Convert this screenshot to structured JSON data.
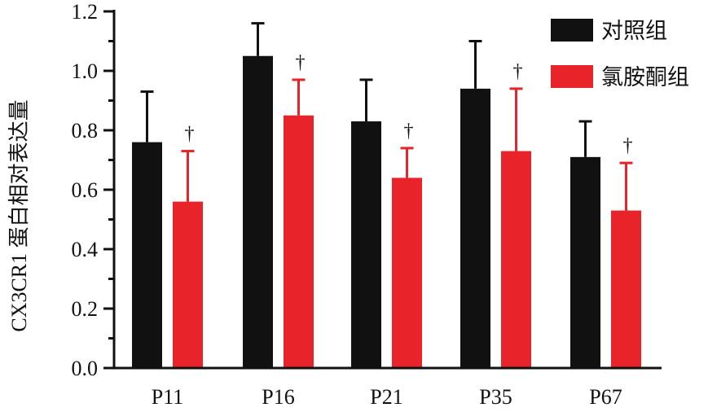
{
  "chart_data": {
    "type": "bar",
    "ylabel": "CX3CR1 蛋白相对表达量",
    "ylim": [
      0,
      1.2
    ],
    "yticks": [
      "0.0",
      "0.2",
      "0.4",
      "0.6",
      "0.8",
      "1.0",
      "1.2"
    ],
    "categories": [
      "P11",
      "P16",
      "P21",
      "P35",
      "P67"
    ],
    "series": [
      {
        "name": "对照组",
        "color": "#111111",
        "values": [
          0.76,
          1.05,
          0.83,
          0.94,
          0.71
        ],
        "errors": [
          0.17,
          0.11,
          0.14,
          0.16,
          0.12
        ]
      },
      {
        "name": "氯胺酮组",
        "color": "#e8232a",
        "values": [
          0.56,
          0.85,
          0.64,
          0.73,
          0.53
        ],
        "errors": [
          0.17,
          0.12,
          0.1,
          0.21,
          0.16
        ]
      }
    ],
    "annotations": [
      "†",
      "†",
      "†",
      "†",
      "†"
    ],
    "legend": "top-right",
    "grid": false
  }
}
